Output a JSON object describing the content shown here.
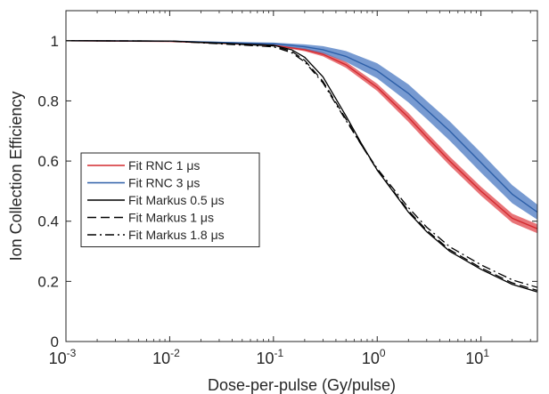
{
  "chart_data": {
    "type": "line",
    "xlabel": "Dose-per-pulse (Gy/pulse)",
    "ylabel": "Ion Collection Efficiency",
    "xscale": "log",
    "xlim": [
      0.001,
      35
    ],
    "ylim": [
      0,
      1.1
    ],
    "grid": false,
    "legend_position": "left-center",
    "x_ticks": [
      {
        "value": 0.001,
        "base": "10",
        "exp": "-3"
      },
      {
        "value": 0.01,
        "base": "10",
        "exp": "-2"
      },
      {
        "value": 0.1,
        "base": "10",
        "exp": "-1"
      },
      {
        "value": 1,
        "base": "10",
        "exp": "0"
      },
      {
        "value": 10,
        "base": "10",
        "exp": "1"
      }
    ],
    "y_ticks": [
      {
        "value": 0,
        "label": "0"
      },
      {
        "value": 0.2,
        "label": "0.2"
      },
      {
        "value": 0.4,
        "label": "0.4"
      },
      {
        "value": 0.6,
        "label": "0.6"
      },
      {
        "value": 0.8,
        "label": "0.8"
      },
      {
        "value": 1,
        "label": "1"
      }
    ],
    "series": [
      {
        "name": "Fit RNC 1 μs",
        "color": "#d42a2f",
        "band_color": "#e0454b",
        "dash": "solid",
        "x": [
          0.001,
          0.01,
          0.1,
          0.2,
          0.3,
          0.5,
          1,
          2,
          3,
          5,
          10,
          20,
          35
        ],
        "y": [
          1.0,
          0.998,
          0.985,
          0.97,
          0.955,
          0.92,
          0.845,
          0.745,
          0.68,
          0.6,
          0.5,
          0.41,
          0.375
        ],
        "lower": [
          1.0,
          0.998,
          0.983,
          0.965,
          0.948,
          0.91,
          0.833,
          0.73,
          0.665,
          0.585,
          0.485,
          0.395,
          0.36
        ],
        "upper": [
          1.0,
          0.998,
          0.987,
          0.975,
          0.962,
          0.93,
          0.857,
          0.76,
          0.695,
          0.615,
          0.515,
          0.425,
          0.39
        ]
      },
      {
        "name": "Fit RNC 3 μs",
        "color": "#2d5fa8",
        "band_color": "#4a78c2",
        "dash": "solid",
        "x": [
          0.001,
          0.01,
          0.1,
          0.2,
          0.3,
          0.5,
          1,
          2,
          3,
          5,
          10,
          20,
          35
        ],
        "y": [
          1.0,
          0.999,
          0.99,
          0.98,
          0.97,
          0.948,
          0.9,
          0.825,
          0.77,
          0.7,
          0.595,
          0.49,
          0.43
        ],
        "lower": [
          1.0,
          0.999,
          0.986,
          0.972,
          0.958,
          0.93,
          0.875,
          0.795,
          0.74,
          0.668,
          0.562,
          0.46,
          0.405
        ],
        "upper": [
          1.0,
          0.999,
          0.994,
          0.988,
          0.982,
          0.966,
          0.925,
          0.855,
          0.8,
          0.732,
          0.628,
          0.52,
          0.455
        ]
      },
      {
        "name": "Fit Markus 0.5 μs",
        "color": "#000000",
        "dash": "solid",
        "x": [
          0.001,
          0.01,
          0.1,
          0.15,
          0.2,
          0.3,
          0.5,
          0.7,
          1,
          2,
          3,
          5,
          10,
          20,
          35
        ],
        "y": [
          1.0,
          0.999,
          0.985,
          0.97,
          0.945,
          0.88,
          0.75,
          0.66,
          0.57,
          0.43,
          0.365,
          0.3,
          0.24,
          0.19,
          0.165
        ]
      },
      {
        "name": "Fit Markus 1 μs",
        "color": "#000000",
        "dash": "dashed",
        "x": [
          0.001,
          0.01,
          0.1,
          0.15,
          0.2,
          0.3,
          0.5,
          0.7,
          1,
          2,
          3,
          5,
          10,
          20,
          35
        ],
        "y": [
          1.0,
          0.999,
          0.983,
          0.965,
          0.935,
          0.865,
          0.74,
          0.655,
          0.57,
          0.435,
          0.37,
          0.305,
          0.245,
          0.195,
          0.17
        ]
      },
      {
        "name": "Fit Markus 1.8 μs",
        "color": "#000000",
        "dash": "dashdot",
        "x": [
          0.001,
          0.01,
          0.1,
          0.15,
          0.2,
          0.3,
          0.5,
          0.7,
          1,
          2,
          3,
          5,
          10,
          20,
          35
        ],
        "y": [
          1.0,
          0.999,
          0.98,
          0.96,
          0.93,
          0.86,
          0.735,
          0.655,
          0.575,
          0.445,
          0.38,
          0.315,
          0.255,
          0.205,
          0.18
        ]
      }
    ]
  }
}
